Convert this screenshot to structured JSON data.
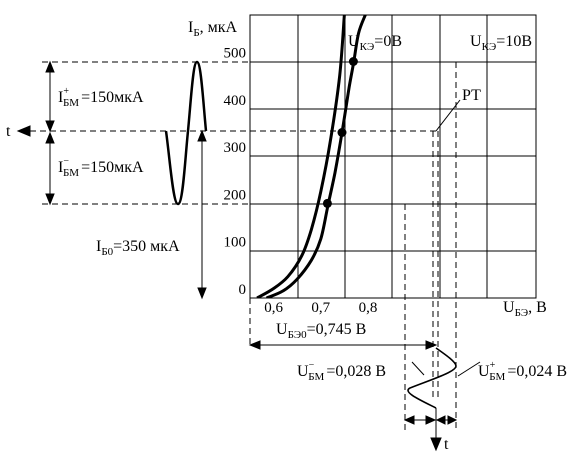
{
  "chart_data": {
    "type": "line",
    "y_axis": {
      "symbol": "I",
      "sub": "Б",
      "unit": ", мкА",
      "ticks": [
        "0",
        "100",
        "200",
        "300",
        "400",
        "500"
      ],
      "tick_values": [
        0,
        100,
        200,
        300,
        400,
        500
      ]
    },
    "x_axis": {
      "ticks": [
        "0,6",
        "0,7",
        "0,8"
      ],
      "tick_values": [
        0.6,
        0.7,
        0.8
      ],
      "unit_symbol": "U",
      "unit_sub": "БЭ",
      "unit": ", В"
    },
    "series": [
      {
        "name": {
          "symbol": "U",
          "sub": "КЭ",
          "suffix": "=0В"
        },
        "x": [
          0.565,
          0.6,
          0.63,
          0.66,
          0.68,
          0.7,
          0.72,
          0.74,
          0.75
        ],
        "y": [
          0,
          20,
          45,
          90,
          145,
          225,
          330,
          470,
          600
        ]
      },
      {
        "name": {
          "symbol": "U",
          "sub": "КЭ",
          "suffix": "=10В"
        },
        "x": [
          0.585,
          0.62,
          0.65,
          0.68,
          0.7,
          0.715,
          0.73,
          0.745,
          0.76,
          0.77,
          0.78,
          0.795
        ],
        "y": [
          0,
          15,
          40,
          80,
          125,
          195,
          265,
          350,
          445,
          500,
          560,
          600
        ]
      }
    ],
    "points": [
      {
        "x": 0.714,
        "y": 200
      },
      {
        "x": 0.745,
        "y": 350
      },
      {
        "x": 0.769,
        "y": 500
      }
    ],
    "operating_point_label": "РТ"
  },
  "annotations": {
    "ibm_plus": {
      "symbol": "I",
      "sup": "+",
      "sub": "БМ",
      "value": "=150мкА"
    },
    "ibm_minus": {
      "symbol": "I",
      "sup": "−",
      "sub": "БМ",
      "value": "=150мкА"
    },
    "ib0": {
      "symbol": "I",
      "sub": "Б0",
      "value": "=350 мкА"
    },
    "ube0": {
      "symbol": "U",
      "sub": "БЭ0",
      "value": "=0,745 В"
    },
    "ubm_minus": {
      "symbol": "U",
      "sup": "−",
      "sub": "БМ",
      "value": "=0,028 В"
    },
    "ubm_plus": {
      "symbol": "U",
      "sup": "+",
      "sub": "БМ",
      "value": "=0,024 В"
    },
    "time_left": "t",
    "time_bottom": "t"
  }
}
